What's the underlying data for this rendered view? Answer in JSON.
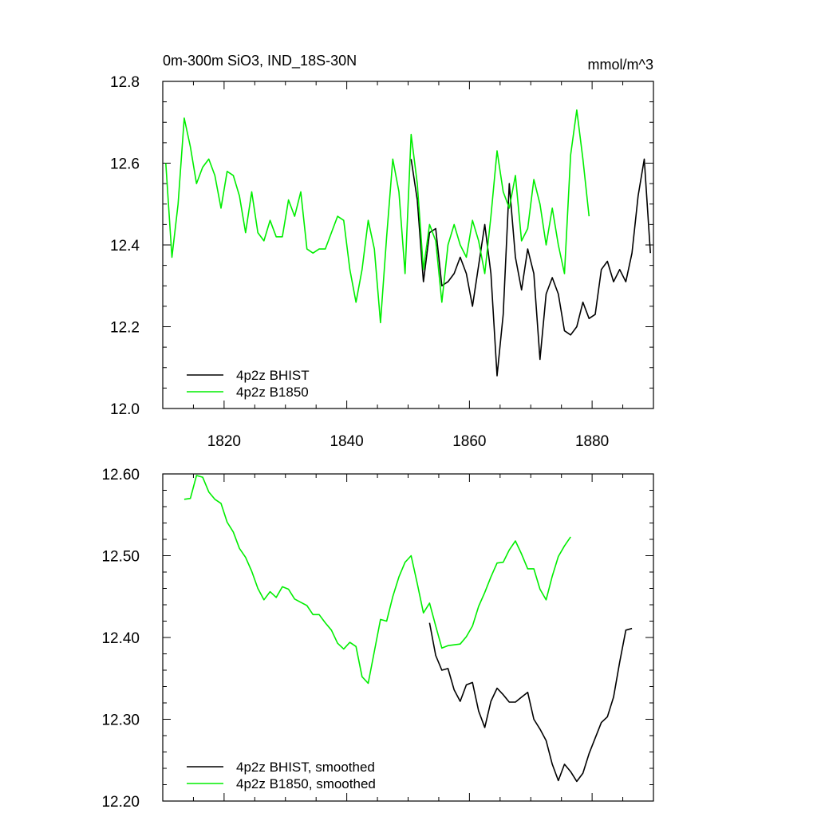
{
  "colors": {
    "bhist": "#000000",
    "b1850": "#00ee00",
    "axis": "#000000",
    "background": "#ffffff"
  },
  "chart_data": [
    {
      "type": "line",
      "title": "0m-300m SiO3, IND_18S-30N",
      "units": "mmol/m^3",
      "xlim": [
        1810,
        1890
      ],
      "ylim": [
        12.0,
        12.8
      ],
      "x_ticks": [
        1820,
        1840,
        1860,
        1880
      ],
      "y_ticks": [
        12.0,
        12.2,
        12.4,
        12.6,
        12.8
      ],
      "y_tick_labels": [
        "12.0",
        "12.2",
        "12.4",
        "12.6",
        "12.8"
      ],
      "legend_position": "bottom-left",
      "grid": false,
      "series": [
        {
          "name": "4p2z BHIST",
          "color": "#000000",
          "x": [
            1850.5,
            1851.5,
            1852.5,
            1853.5,
            1854.5,
            1855.5,
            1856.5,
            1857.5,
            1858.5,
            1859.5,
            1860.5,
            1861.5,
            1862.5,
            1863.5,
            1864.5,
            1865.5,
            1866.5,
            1867.5,
            1868.5,
            1869.5,
            1870.5,
            1871.5,
            1872.5,
            1873.5,
            1874.5,
            1875.5,
            1876.5,
            1877.5,
            1878.5,
            1879.5,
            1880.5,
            1881.5,
            1882.5,
            1883.5,
            1884.5,
            1885.5,
            1886.5,
            1887.5,
            1888.5,
            1889.5
          ],
          "y": [
            12.61,
            12.51,
            12.31,
            12.43,
            12.44,
            12.3,
            12.31,
            12.33,
            12.37,
            12.33,
            12.25,
            12.35,
            12.45,
            12.33,
            12.08,
            12.23,
            12.55,
            12.37,
            12.29,
            12.39,
            12.33,
            12.12,
            12.28,
            12.32,
            12.28,
            12.19,
            12.18,
            12.2,
            12.26,
            12.22,
            12.23,
            12.34,
            12.36,
            12.31,
            12.34,
            12.31,
            12.38,
            12.52,
            12.61,
            12.38
          ]
        },
        {
          "name": "4p2z B1850",
          "color": "#00ee00",
          "x": [
            1810.5,
            1811.5,
            1812.5,
            1813.5,
            1814.5,
            1815.5,
            1816.5,
            1817.5,
            1818.5,
            1819.5,
            1820.5,
            1821.5,
            1822.5,
            1823.5,
            1824.5,
            1825.5,
            1826.5,
            1827.5,
            1828.5,
            1829.5,
            1830.5,
            1831.5,
            1832.5,
            1833.5,
            1834.5,
            1835.5,
            1836.5,
            1837.5,
            1838.5,
            1839.5,
            1840.5,
            1841.5,
            1842.5,
            1843.5,
            1844.5,
            1845.5,
            1846.5,
            1847.5,
            1848.5,
            1849.5,
            1850.5,
            1851.5,
            1852.5,
            1853.5,
            1854.5,
            1855.5,
            1856.5,
            1857.5,
            1858.5,
            1859.5,
            1860.5,
            1861.5,
            1862.5,
            1863.5,
            1864.5,
            1865.5,
            1866.5,
            1867.5,
            1868.5,
            1869.5,
            1870.5,
            1871.5,
            1872.5,
            1873.5,
            1874.5,
            1875.5,
            1876.5,
            1877.5,
            1878.5,
            1879.5
          ],
          "y": [
            12.6,
            12.37,
            12.5,
            12.71,
            12.64,
            12.55,
            12.59,
            12.61,
            12.57,
            12.49,
            12.58,
            12.57,
            12.52,
            12.43,
            12.53,
            12.43,
            12.41,
            12.46,
            12.42,
            12.42,
            12.51,
            12.47,
            12.53,
            12.39,
            12.38,
            12.39,
            12.39,
            12.43,
            12.47,
            12.46,
            12.34,
            12.26,
            12.34,
            12.46,
            12.39,
            12.21,
            12.42,
            12.61,
            12.53,
            12.33,
            12.67,
            12.55,
            12.34,
            12.45,
            12.41,
            12.26,
            12.4,
            12.45,
            12.4,
            12.37,
            12.46,
            12.41,
            12.33,
            12.47,
            12.63,
            12.53,
            12.49,
            12.57,
            12.41,
            12.44,
            12.56,
            12.5,
            12.4,
            12.49,
            12.4,
            12.33,
            12.62,
            12.73,
            12.61,
            12.47
          ]
        }
      ]
    },
    {
      "type": "line",
      "xlim": [
        1810,
        1890
      ],
      "ylim": [
        12.2,
        12.6
      ],
      "x_ticks": [
        1820,
        1840,
        1860,
        1880
      ],
      "y_ticks": [
        12.2,
        12.3,
        12.4,
        12.5,
        12.6
      ],
      "y_tick_labels": [
        "12.20",
        "12.30",
        "12.40",
        "12.50",
        "12.60"
      ],
      "legend_position": "bottom-left",
      "grid": false,
      "series": [
        {
          "name": "4p2z BHIST, smoothed",
          "color": "#000000",
          "x": [
            1853.5,
            1854.5,
            1855.5,
            1856.5,
            1857.5,
            1858.5,
            1859.5,
            1860.5,
            1861.5,
            1862.5,
            1863.5,
            1864.5,
            1865.5,
            1866.5,
            1867.5,
            1868.5,
            1869.5,
            1870.5,
            1871.5,
            1872.5,
            1873.5,
            1874.5,
            1875.5,
            1876.5,
            1877.5,
            1878.5,
            1879.5,
            1880.5,
            1881.5,
            1882.5,
            1883.5,
            1884.5,
            1885.5,
            1886.5
          ],
          "y": [
            12.418,
            12.378,
            12.36,
            12.362,
            12.336,
            12.322,
            12.342,
            12.345,
            12.31,
            12.29,
            12.322,
            12.338,
            12.33,
            12.321,
            12.321,
            12.327,
            12.333,
            12.3,
            12.288,
            12.274,
            12.245,
            12.225,
            12.245,
            12.236,
            12.224,
            12.234,
            12.258,
            12.277,
            12.296,
            12.303,
            12.327,
            12.37,
            12.409,
            12.411
          ]
        },
        {
          "name": "4p2z B1850, smoothed",
          "color": "#00ee00",
          "x": [
            1813.5,
            1814.5,
            1815.5,
            1816.5,
            1817.5,
            1818.5,
            1819.5,
            1820.5,
            1821.5,
            1822.5,
            1823.5,
            1824.5,
            1825.5,
            1826.5,
            1827.5,
            1828.5,
            1829.5,
            1830.5,
            1831.5,
            1832.5,
            1833.5,
            1834.5,
            1835.5,
            1836.5,
            1837.5,
            1838.5,
            1839.5,
            1840.5,
            1841.5,
            1842.5,
            1843.5,
            1844.5,
            1845.5,
            1846.5,
            1847.5,
            1848.5,
            1849.5,
            1850.5,
            1851.5,
            1852.5,
            1853.5,
            1854.5,
            1855.5,
            1856.5,
            1857.5,
            1858.5,
            1859.5,
            1860.5,
            1861.5,
            1862.5,
            1863.5,
            1864.5,
            1865.5,
            1866.5,
            1867.5,
            1868.5,
            1869.5,
            1870.5,
            1871.5,
            1872.5,
            1873.5,
            1874.5,
            1875.5,
            1876.5
          ],
          "y": [
            12.569,
            12.57,
            12.598,
            12.596,
            12.578,
            12.569,
            12.564,
            12.541,
            12.529,
            12.509,
            12.498,
            12.481,
            12.46,
            12.446,
            12.456,
            12.449,
            12.462,
            12.459,
            12.447,
            12.443,
            12.439,
            12.428,
            12.428,
            12.418,
            12.409,
            12.393,
            12.386,
            12.394,
            12.389,
            12.352,
            12.344,
            12.383,
            12.422,
            12.42,
            12.45,
            12.474,
            12.492,
            12.5,
            12.466,
            12.43,
            12.442,
            12.414,
            12.387,
            12.39,
            12.391,
            12.392,
            12.401,
            12.414,
            12.438,
            12.455,
            12.474,
            12.491,
            12.492,
            12.507,
            12.518,
            12.502,
            12.484,
            12.484,
            12.459,
            12.446,
            12.475,
            12.499,
            12.512,
            12.523
          ]
        }
      ]
    }
  ]
}
